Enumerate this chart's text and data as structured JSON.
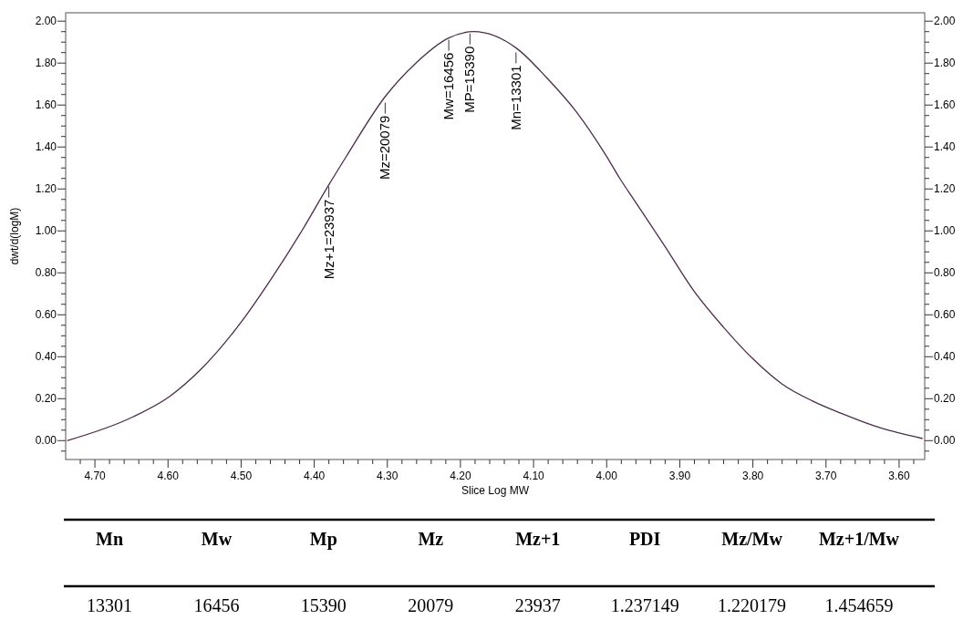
{
  "chart_data": [
    {
      "type": "line",
      "xlabel": "Slice Log MW",
      "ylabel": "dwt/d(logM)",
      "x": [
        4.738,
        4.65,
        4.598,
        4.555,
        4.501,
        4.459,
        4.417,
        4.38,
        4.357,
        4.303,
        4.261,
        4.216,
        4.182,
        4.123,
        4.082,
        4.042,
        4.001,
        3.982,
        3.961,
        3.921,
        3.88,
        3.84,
        3.8,
        3.76,
        3.719,
        3.679,
        3.625,
        3.568
      ],
      "series": [
        {
          "color": "#4b2d4b",
          "values": [
            0,
            0.11,
            0.21,
            0.34,
            0.56,
            0.77,
            1,
            1.22,
            1.35,
            1.64,
            1.8,
            1.92,
            1.95,
            1.87,
            1.73,
            1.57,
            1.36,
            1.25,
            1.14,
            0.93,
            0.71,
            0.54,
            0.39,
            0.27,
            0.19,
            0.13,
            0.06,
            0.01
          ]
        }
      ],
      "xlim": [
        4.74,
        3.565
      ],
      "ylim": [
        -0.09,
        2.04
      ],
      "y2lim": [
        -0.09,
        2.04
      ],
      "xticks": [
        {
          "value": 4.7,
          "label": "4.70"
        },
        {
          "value": 4.6,
          "label": "4.60"
        },
        {
          "value": 4.5,
          "label": "4.50"
        },
        {
          "value": 4.4,
          "label": "4.40"
        },
        {
          "value": 4.3,
          "label": "4.30"
        },
        {
          "value": 4.2,
          "label": "4.20"
        },
        {
          "value": 4.1,
          "label": "4.10"
        },
        {
          "value": 4,
          "label": "4.00"
        },
        {
          "value": 3.9,
          "label": "3.90"
        },
        {
          "value": 3.8,
          "label": "3.80"
        },
        {
          "value": 3.7,
          "label": "3.70"
        },
        {
          "value": 3.6,
          "label": "3.60"
        },
        {
          "value": 4.72,
          "label": null
        },
        {
          "value": 4.68,
          "label": null
        },
        {
          "value": 4.66,
          "label": null
        },
        {
          "value": 4.64,
          "label": null
        },
        {
          "value": 4.62,
          "label": null
        },
        {
          "value": 4.58,
          "label": null
        },
        {
          "value": 4.56,
          "label": null
        },
        {
          "value": 4.54,
          "label": null
        },
        {
          "value": 4.52,
          "label": null
        },
        {
          "value": 4.48,
          "label": null
        },
        {
          "value": 4.46,
          "label": null
        },
        {
          "value": 4.44,
          "label": null
        },
        {
          "value": 4.42,
          "label": null
        },
        {
          "value": 4.38,
          "label": null
        },
        {
          "value": 4.36,
          "label": null
        },
        {
          "value": 4.34,
          "label": null
        },
        {
          "value": 4.32,
          "label": null
        },
        {
          "value": 4.28,
          "label": null
        },
        {
          "value": 4.26,
          "label": null
        },
        {
          "value": 4.24,
          "label": null
        },
        {
          "value": 4.22,
          "label": null
        },
        {
          "value": 4.18,
          "label": null
        },
        {
          "value": 4.16,
          "label": null
        },
        {
          "value": 4.14,
          "label": null
        },
        {
          "value": 4.12,
          "label": null
        },
        {
          "value": 4.08,
          "label": null
        },
        {
          "value": 4.06,
          "label": null
        },
        {
          "value": 4.04,
          "label": null
        },
        {
          "value": 4.02,
          "label": null
        },
        {
          "value": 3.98,
          "label": null
        },
        {
          "value": 3.96,
          "label": null
        },
        {
          "value": 3.94,
          "label": null
        },
        {
          "value": 3.92,
          "label": null
        },
        {
          "value": 3.88,
          "label": null
        },
        {
          "value": 3.86,
          "label": null
        },
        {
          "value": 3.84,
          "label": null
        },
        {
          "value": 3.82,
          "label": null
        },
        {
          "value": 3.78,
          "label": null
        },
        {
          "value": 3.76,
          "label": null
        },
        {
          "value": 3.74,
          "label": null
        },
        {
          "value": 3.72,
          "label": null
        },
        {
          "value": 3.68,
          "label": null
        },
        {
          "value": 3.66,
          "label": null
        },
        {
          "value": 3.64,
          "label": null
        },
        {
          "value": 3.62,
          "label": null
        },
        {
          "value": 3.58,
          "label": null
        }
      ],
      "yticks": [
        {
          "value": 0,
          "label": "0.00"
        },
        {
          "value": 0.2,
          "label": "0.20"
        },
        {
          "value": 0.4,
          "label": "0.40"
        },
        {
          "value": 0.6,
          "label": "0.60"
        },
        {
          "value": 0.8,
          "label": "0.80"
        },
        {
          "value": 1,
          "label": "1.00"
        },
        {
          "value": 1.2,
          "label": "1.20"
        },
        {
          "value": 1.4,
          "label": "1.40"
        },
        {
          "value": 1.6,
          "label": "1.60"
        },
        {
          "value": 1.8,
          "label": "1.80"
        },
        {
          "value": 2,
          "label": "2.00"
        },
        {
          "value": -0.05,
          "label": null
        },
        {
          "value": 0.05,
          "label": null
        },
        {
          "value": 0.1,
          "label": null
        },
        {
          "value": 0.15,
          "label": null
        },
        {
          "value": 0.25,
          "label": null
        },
        {
          "value": 0.3,
          "label": null
        },
        {
          "value": 0.35,
          "label": null
        },
        {
          "value": 0.45,
          "label": null
        },
        {
          "value": 0.5,
          "label": null
        },
        {
          "value": 0.55,
          "label": null
        },
        {
          "value": 0.65,
          "label": null
        },
        {
          "value": 0.7,
          "label": null
        },
        {
          "value": 0.75,
          "label": null
        },
        {
          "value": 0.85,
          "label": null
        },
        {
          "value": 0.9,
          "label": null
        },
        {
          "value": 0.95,
          "label": null
        },
        {
          "value": 1.05,
          "label": null
        },
        {
          "value": 1.1,
          "label": null
        },
        {
          "value": 1.15,
          "label": null
        },
        {
          "value": 1.25,
          "label": null
        },
        {
          "value": 1.3,
          "label": null
        },
        {
          "value": 1.35,
          "label": null
        },
        {
          "value": 1.45,
          "label": null
        },
        {
          "value": 1.5,
          "label": null
        },
        {
          "value": 1.55,
          "label": null
        },
        {
          "value": 1.65,
          "label": null
        },
        {
          "value": 1.7,
          "label": null
        },
        {
          "value": 1.75,
          "label": null
        },
        {
          "value": 1.85,
          "label": null
        },
        {
          "value": 1.9,
          "label": null
        },
        {
          "value": 1.95,
          "label": null
        }
      ],
      "y2ticks": [
        {
          "value": 0,
          "label": "0.00"
        },
        {
          "value": 0.2,
          "label": "0.20"
        },
        {
          "value": 0.4,
          "label": "0.40"
        },
        {
          "value": 0.6,
          "label": "0.60"
        },
        {
          "value": 0.8,
          "label": "0.80"
        },
        {
          "value": 1,
          "label": "1.00"
        },
        {
          "value": 1.2,
          "label": "1.20"
        },
        {
          "value": 1.4,
          "label": "1.40"
        },
        {
          "value": 1.6,
          "label": "1.60"
        },
        {
          "value": 1.8,
          "label": "1.80"
        },
        {
          "value": 2,
          "label": "2.00"
        },
        {
          "value": -0.05,
          "label": null
        },
        {
          "value": 0.05,
          "label": null
        },
        {
          "value": 0.1,
          "label": null
        },
        {
          "value": 0.15,
          "label": null
        },
        {
          "value": 0.25,
          "label": null
        },
        {
          "value": 0.3,
          "label": null
        },
        {
          "value": 0.35,
          "label": null
        },
        {
          "value": 0.45,
          "label": null
        },
        {
          "value": 0.5,
          "label": null
        },
        {
          "value": 0.55,
          "label": null
        },
        {
          "value": 0.65,
          "label": null
        },
        {
          "value": 0.7,
          "label": null
        },
        {
          "value": 0.75,
          "label": null
        },
        {
          "value": 0.85,
          "label": null
        },
        {
          "value": 0.9,
          "label": null
        },
        {
          "value": 0.95,
          "label": null
        },
        {
          "value": 1.05,
          "label": null
        },
        {
          "value": 1.1,
          "label": null
        },
        {
          "value": 1.15,
          "label": null
        },
        {
          "value": 1.25,
          "label": null
        },
        {
          "value": 1.3,
          "label": null
        },
        {
          "value": 1.35,
          "label": null
        },
        {
          "value": 1.45,
          "label": null
        },
        {
          "value": 1.5,
          "label": null
        },
        {
          "value": 1.55,
          "label": null
        },
        {
          "value": 1.65,
          "label": null
        },
        {
          "value": 1.7,
          "label": null
        },
        {
          "value": 1.75,
          "label": null
        },
        {
          "value": 1.85,
          "label": null
        },
        {
          "value": 1.9,
          "label": null
        },
        {
          "value": 1.95,
          "label": null
        }
      ],
      "annotations": [
        {
          "text": "Mz+1=23937",
          "x": 4.38,
          "y": 1.22
        },
        {
          "text": "Mz=20079",
          "x": 4.303,
          "y": 1.62
        },
        {
          "text": "Mw=16456",
          "x": 4.216,
          "y": 1.92
        },
        {
          "text": "MP=15390",
          "x": 4.187,
          "y": 1.95
        },
        {
          "text": "Mn=13301",
          "x": 4.124,
          "y": 1.86
        }
      ]
    },
    {
      "type": "other",
      "categories": [
        "Mn",
        "Mw",
        "Mp",
        "Mz",
        "Mz+1",
        "PDI",
        "Mz/Mw",
        "Mz+1/Mw"
      ],
      "values": [
        13301,
        16456,
        15390,
        20079,
        23937,
        1.237149,
        1.220179,
        1.454659
      ],
      "data_labels": true
    }
  ]
}
